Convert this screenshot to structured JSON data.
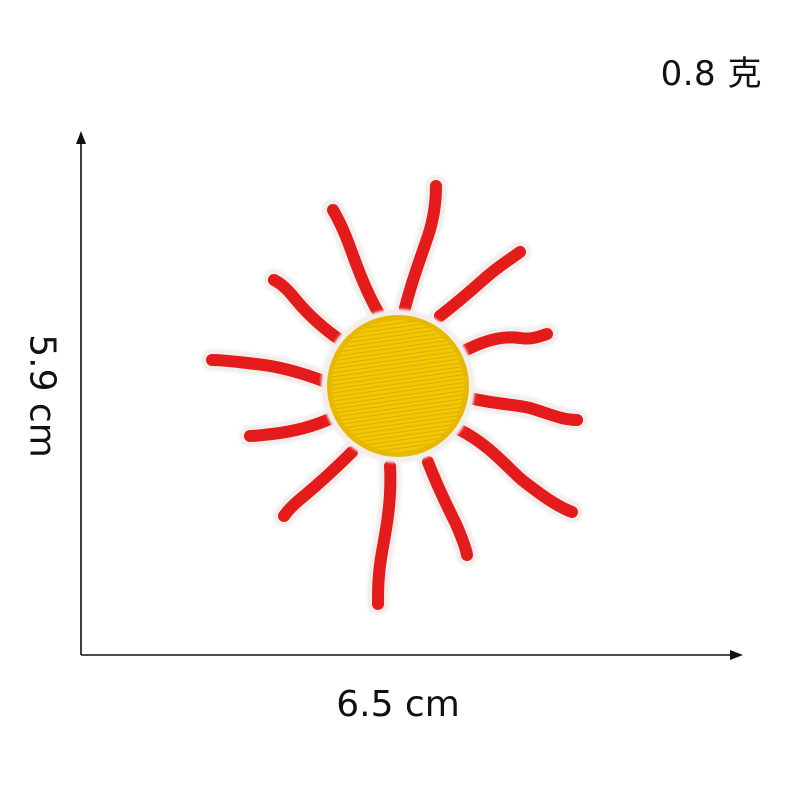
{
  "product_image": {
    "weight_label": "0.8 克",
    "width_label": "6.5 cm",
    "height_label": "5.9 cm",
    "subject": "sun-embroidered-patch-icon",
    "colors": {
      "rays": "#e41b1b",
      "ray_highlight": "#f04a3a",
      "center": "#f2c200",
      "center_stitch": "#d9a800",
      "patch_border": "#f4f1ef",
      "dimension_lines": "#111111",
      "background": "#ffffff"
    }
  }
}
